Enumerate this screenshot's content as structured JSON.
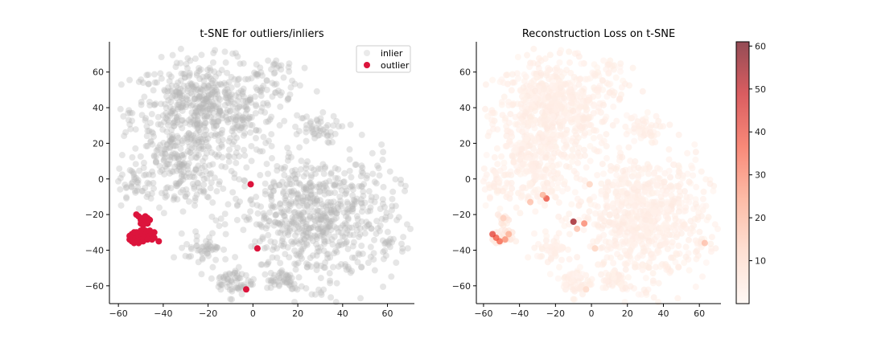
{
  "chart_data": [
    {
      "type": "scatter",
      "title": "t-SNE for outliers/inliers",
      "xlabel": "",
      "ylabel": "",
      "xlim": [
        -64,
        72
      ],
      "ylim": [
        -70,
        77
      ],
      "xticks": [
        -60,
        -40,
        -20,
        0,
        20,
        40,
        60
      ],
      "yticks": [
        -60,
        -40,
        -20,
        0,
        20,
        40,
        60
      ],
      "grid": false,
      "legend_position": "top-right",
      "series": [
        {
          "name": "inlier",
          "color": "#b8b8b8",
          "clusters": [
            {
              "cx": -22,
              "cy": 38,
              "sx": 16,
              "sy": 14,
              "n": 620
            },
            {
              "cx": -35,
              "cy": 12,
              "sx": 8,
              "sy": 6,
              "n": 90
            },
            {
              "cx": 10,
              "cy": 56,
              "sx": 6,
              "sy": 8,
              "n": 40
            },
            {
              "cx": 28,
              "cy": 28,
              "sx": 5,
              "sy": 4,
              "n": 45
            },
            {
              "cx": 28,
              "cy": -22,
              "sx": 18,
              "sy": 18,
              "n": 720
            },
            {
              "cx": -30,
              "cy": -5,
              "sx": 8,
              "sy": 6,
              "n": 80
            },
            {
              "cx": -22,
              "cy": -38,
              "sx": 4,
              "sy": 4,
              "n": 45
            },
            {
              "cx": -8,
              "cy": -58,
              "sx": 4,
              "sy": 4,
              "n": 60
            },
            {
              "cx": 12,
              "cy": -56,
              "sx": 5,
              "sy": 3,
              "n": 40
            },
            {
              "cx": -52,
              "cy": -4,
              "sx": 4,
              "sy": 5,
              "n": 35
            },
            {
              "cx": 62,
              "cy": -36,
              "sx": 2,
              "sy": 2,
              "n": 8
            }
          ]
        },
        {
          "name": "outlier",
          "color": "#dc143c",
          "points": [
            [
              -53,
              -33
            ],
            [
              -54,
              -31
            ],
            [
              -52,
              -35
            ],
            [
              -51,
              -32
            ],
            [
              -50,
              -34
            ],
            [
              -55,
              -34
            ],
            [
              -52,
              -30
            ],
            [
              -49,
              -31
            ],
            [
              -48,
              -33
            ],
            [
              -47,
              -30
            ],
            [
              -46,
              -32
            ],
            [
              -45,
              -34
            ],
            [
              -44,
              -33
            ],
            [
              -42,
              -35
            ],
            [
              -48,
              -29
            ],
            [
              -50,
              -29
            ],
            [
              -53,
              -36
            ],
            [
              -51,
              -36
            ],
            [
              -46,
              -29
            ],
            [
              -44,
              -30
            ],
            [
              -49,
              -35
            ],
            [
              -47,
              -34
            ],
            [
              -55,
              -32
            ],
            [
              -54,
              -35
            ],
            [
              -51,
              -21
            ],
            [
              -50,
              -23
            ],
            [
              -49,
              -22
            ],
            [
              -48,
              -24
            ],
            [
              -47,
              -22
            ],
            [
              -52,
              -20
            ],
            [
              -50,
              -25
            ],
            [
              -48,
              -21
            ],
            [
              -46,
              -23
            ],
            [
              -47,
              -25
            ],
            [
              -49,
              -26
            ],
            [
              -53,
              -30
            ],
            [
              -1,
              -3
            ],
            [
              2,
              -39
            ],
            [
              -3,
              -62
            ]
          ]
        }
      ]
    },
    {
      "type": "scatter",
      "title": "Reconstruction Loss on t-SNE",
      "xlabel": "",
      "ylabel": "",
      "xlim": [
        -64,
        72
      ],
      "ylim": [
        -70,
        77
      ],
      "xticks": [
        -60,
        -40,
        -20,
        0,
        20,
        40,
        60
      ],
      "yticks": [
        -60,
        -40,
        -20,
        0,
        20,
        40,
        60
      ],
      "grid": false,
      "colormap": "Reds",
      "colorbar": {
        "min": 0,
        "max": 61,
        "ticks": [
          10,
          20,
          30,
          40,
          50,
          60
        ]
      },
      "color_by": "reconstruction loss",
      "highlights": [
        {
          "x": -53,
          "y": -33,
          "value": 38
        },
        {
          "x": -55,
          "y": -31,
          "value": 42
        },
        {
          "x": -51,
          "y": -35,
          "value": 36
        },
        {
          "x": -48,
          "y": -34,
          "value": 28
        },
        {
          "x": -46,
          "y": -31,
          "value": 22
        },
        {
          "x": -49,
          "y": -22,
          "value": 14
        },
        {
          "x": -25,
          "y": -11,
          "value": 40
        },
        {
          "x": -27,
          "y": -9,
          "value": 22
        },
        {
          "x": -34,
          "y": -13,
          "value": 18
        },
        {
          "x": -10,
          "y": -24,
          "value": 55
        },
        {
          "x": -4,
          "y": -25,
          "value": 30
        },
        {
          "x": -8,
          "y": -28,
          "value": 18
        },
        {
          "x": 63,
          "y": -36,
          "value": 18
        },
        {
          "x": 2,
          "y": -39,
          "value": 12
        },
        {
          "x": -3,
          "y": -62,
          "value": 10
        },
        {
          "x": -1,
          "y": -3,
          "value": 12
        }
      ]
    }
  ]
}
